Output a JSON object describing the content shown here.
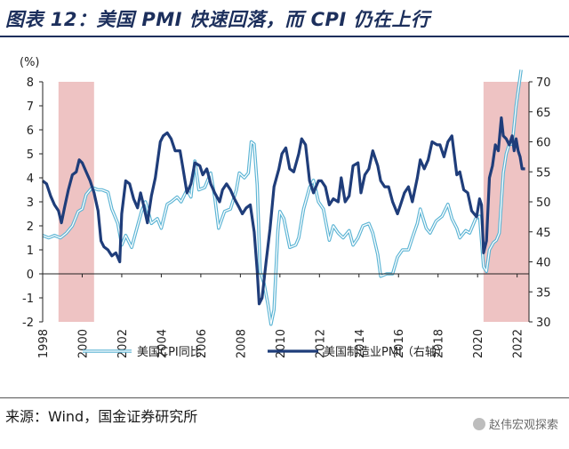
{
  "title": "图表 12：美国 PMI 快速回落，而 CPI 仍在上行",
  "source": "来源：Wind，国金证券研究所",
  "watermark": "赵伟宏观探索",
  "chart_data": {
    "type": "line",
    "y_left": {
      "unit_label": "(%)",
      "range": [
        -2,
        8
      ],
      "ticks": [
        "8",
        "7",
        "6",
        "5",
        "4",
        "3",
        "2",
        "1",
        "0",
        "-1",
        "-2"
      ]
    },
    "y_right": {
      "range": [
        30,
        70
      ],
      "ticks": [
        "70",
        "65",
        "60",
        "55",
        "50",
        "45",
        "40",
        "35",
        "30"
      ]
    },
    "x": {
      "range": [
        1998,
        2022.6
      ],
      "ticks": [
        "1998",
        "2000",
        "2002",
        "2004",
        "2006",
        "2008",
        "2010",
        "2012",
        "2014",
        "2016",
        "2018",
        "2020",
        "2022"
      ]
    },
    "shaded_periods": [
      [
        1998.8,
        2000.6
      ],
      [
        2020.3,
        2022.6
      ]
    ],
    "series": [
      {
        "name": "美国CPI同比",
        "axis": "left",
        "color": "#6fc3df",
        "points": [
          [
            1998.0,
            1.6
          ],
          [
            1998.3,
            1.5
          ],
          [
            1998.6,
            1.6
          ],
          [
            1998.9,
            1.5
          ],
          [
            1999.2,
            1.7
          ],
          [
            1999.5,
            2.0
          ],
          [
            1999.8,
            2.6
          ],
          [
            2000.0,
            2.7
          ],
          [
            2000.2,
            3.3
          ],
          [
            2000.5,
            3.6
          ],
          [
            2000.8,
            3.5
          ],
          [
            2001.0,
            3.5
          ],
          [
            2001.3,
            3.4
          ],
          [
            2001.5,
            2.7
          ],
          [
            2001.8,
            2.1
          ],
          [
            2002.0,
            1.2
          ],
          [
            2002.2,
            1.6
          ],
          [
            2002.5,
            1.1
          ],
          [
            2002.8,
            2.0
          ],
          [
            2003.0,
            2.6
          ],
          [
            2003.2,
            3.0
          ],
          [
            2003.5,
            2.1
          ],
          [
            2003.8,
            2.3
          ],
          [
            2004.0,
            1.9
          ],
          [
            2004.3,
            2.9
          ],
          [
            2004.5,
            3.0
          ],
          [
            2004.8,
            3.2
          ],
          [
            2005.0,
            3.0
          ],
          [
            2005.3,
            3.5
          ],
          [
            2005.5,
            3.2
          ],
          [
            2005.7,
            4.7
          ],
          [
            2005.9,
            3.5
          ],
          [
            2006.2,
            3.6
          ],
          [
            2006.5,
            4.2
          ],
          [
            2006.7,
            3.2
          ],
          [
            2006.9,
            1.9
          ],
          [
            2007.2,
            2.6
          ],
          [
            2007.5,
            2.7
          ],
          [
            2007.8,
            3.5
          ],
          [
            2007.95,
            4.2
          ],
          [
            2008.2,
            4.0
          ],
          [
            2008.4,
            4.2
          ],
          [
            2008.55,
            5.5
          ],
          [
            2008.7,
            5.4
          ],
          [
            2008.85,
            3.7
          ],
          [
            2009.0,
            0.1
          ],
          [
            2009.2,
            -0.4
          ],
          [
            2009.4,
            -1.3
          ],
          [
            2009.55,
            -2.1
          ],
          [
            2009.7,
            -1.5
          ],
          [
            2009.9,
            1.8
          ],
          [
            2010.0,
            2.6
          ],
          [
            2010.2,
            2.3
          ],
          [
            2010.5,
            1.1
          ],
          [
            2010.8,
            1.2
          ],
          [
            2010.95,
            1.5
          ],
          [
            2011.2,
            2.7
          ],
          [
            2011.5,
            3.6
          ],
          [
            2011.7,
            3.9
          ],
          [
            2011.95,
            3.0
          ],
          [
            2012.2,
            2.7
          ],
          [
            2012.5,
            1.4
          ],
          [
            2012.7,
            2.0
          ],
          [
            2012.95,
            1.7
          ],
          [
            2013.2,
            1.5
          ],
          [
            2013.5,
            1.8
          ],
          [
            2013.7,
            1.2
          ],
          [
            2013.95,
            1.5
          ],
          [
            2014.2,
            2.0
          ],
          [
            2014.5,
            2.1
          ],
          [
            2014.7,
            1.7
          ],
          [
            2014.95,
            0.8
          ],
          [
            2015.1,
            -0.1
          ],
          [
            2015.4,
            0.0
          ],
          [
            2015.7,
            0.0
          ],
          [
            2015.95,
            0.7
          ],
          [
            2016.2,
            1.0
          ],
          [
            2016.5,
            1.0
          ],
          [
            2016.7,
            1.5
          ],
          [
            2016.95,
            2.1
          ],
          [
            2017.1,
            2.7
          ],
          [
            2017.4,
            1.9
          ],
          [
            2017.6,
            1.7
          ],
          [
            2017.9,
            2.2
          ],
          [
            2018.2,
            2.4
          ],
          [
            2018.5,
            2.9
          ],
          [
            2018.7,
            2.3
          ],
          [
            2018.95,
            1.9
          ],
          [
            2019.1,
            1.5
          ],
          [
            2019.4,
            1.8
          ],
          [
            2019.6,
            1.7
          ],
          [
            2019.9,
            2.3
          ],
          [
            2020.1,
            2.4
          ],
          [
            2020.3,
            0.3
          ],
          [
            2020.45,
            0.1
          ],
          [
            2020.6,
            1.0
          ],
          [
            2020.8,
            1.3
          ],
          [
            2020.95,
            1.4
          ],
          [
            2021.1,
            1.7
          ],
          [
            2021.3,
            4.2
          ],
          [
            2021.45,
            5.0
          ],
          [
            2021.6,
            5.4
          ],
          [
            2021.75,
            5.4
          ],
          [
            2021.85,
            6.2
          ],
          [
            2021.95,
            7.0
          ],
          [
            2022.1,
            7.9
          ],
          [
            2022.2,
            8.5
          ]
        ]
      },
      {
        "name": "美国制造业PMI（右轴）",
        "axis": "right",
        "color": "#1f3d7a",
        "points": [
          [
            1998.0,
            53.5
          ],
          [
            1998.2,
            53.0
          ],
          [
            1998.4,
            51.0
          ],
          [
            1998.6,
            49.5
          ],
          [
            1998.8,
            48.5
          ],
          [
            1998.95,
            46.5
          ],
          [
            1999.1,
            49.0
          ],
          [
            1999.3,
            52.0
          ],
          [
            1999.5,
            54.5
          ],
          [
            1999.7,
            55.0
          ],
          [
            1999.85,
            57.0
          ],
          [
            2000.0,
            56.5
          ],
          [
            2000.2,
            55.0
          ],
          [
            2000.4,
            53.5
          ],
          [
            2000.6,
            51.5
          ],
          [
            2000.8,
            48.5
          ],
          [
            2000.95,
            43.5
          ],
          [
            2001.1,
            42.5
          ],
          [
            2001.3,
            42.0
          ],
          [
            2001.5,
            41.0
          ],
          [
            2001.7,
            41.5
          ],
          [
            2001.9,
            40.0
          ],
          [
            2002.0,
            48.0
          ],
          [
            2002.2,
            53.5
          ],
          [
            2002.4,
            53.0
          ],
          [
            2002.6,
            50.5
          ],
          [
            2002.8,
            49.0
          ],
          [
            2002.95,
            51.5
          ],
          [
            2003.1,
            49.5
          ],
          [
            2003.3,
            46.5
          ],
          [
            2003.5,
            51.0
          ],
          [
            2003.7,
            54.0
          ],
          [
            2003.95,
            60.0
          ],
          [
            2004.1,
            61.0
          ],
          [
            2004.3,
            61.5
          ],
          [
            2004.5,
            60.5
          ],
          [
            2004.7,
            58.5
          ],
          [
            2004.95,
            58.5
          ],
          [
            2005.1,
            55.5
          ],
          [
            2005.3,
            51.5
          ],
          [
            2005.5,
            53.0
          ],
          [
            2005.7,
            56.5
          ],
          [
            2005.95,
            56.0
          ],
          [
            2006.1,
            54.5
          ],
          [
            2006.3,
            55.5
          ],
          [
            2006.5,
            53.0
          ],
          [
            2006.7,
            51.5
          ],
          [
            2006.95,
            50.0
          ],
          [
            2007.1,
            52.0
          ],
          [
            2007.3,
            53.0
          ],
          [
            2007.5,
            52.0
          ],
          [
            2007.7,
            50.5
          ],
          [
            2007.95,
            49.0
          ],
          [
            2008.1,
            48.0
          ],
          [
            2008.3,
            49.0
          ],
          [
            2008.5,
            49.5
          ],
          [
            2008.7,
            45.0
          ],
          [
            2008.85,
            38.5
          ],
          [
            2008.95,
            33.0
          ],
          [
            2009.1,
            34.0
          ],
          [
            2009.3,
            40.0
          ],
          [
            2009.5,
            45.5
          ],
          [
            2009.7,
            52.5
          ],
          [
            2009.95,
            55.5
          ],
          [
            2010.1,
            58.0
          ],
          [
            2010.3,
            59.0
          ],
          [
            2010.5,
            55.5
          ],
          [
            2010.7,
            55.0
          ],
          [
            2010.95,
            58.0
          ],
          [
            2011.1,
            60.5
          ],
          [
            2011.3,
            59.5
          ],
          [
            2011.5,
            53.5
          ],
          [
            2011.7,
            51.5
          ],
          [
            2011.95,
            53.5
          ],
          [
            2012.1,
            53.5
          ],
          [
            2012.3,
            52.5
          ],
          [
            2012.5,
            49.5
          ],
          [
            2012.7,
            50.5
          ],
          [
            2012.95,
            50.0
          ],
          [
            2013.1,
            54.0
          ],
          [
            2013.3,
            50.0
          ],
          [
            2013.5,
            51.0
          ],
          [
            2013.7,
            56.0
          ],
          [
            2013.95,
            56.5
          ],
          [
            2014.1,
            51.5
          ],
          [
            2014.3,
            54.5
          ],
          [
            2014.5,
            55.5
          ],
          [
            2014.7,
            58.5
          ],
          [
            2014.95,
            56.0
          ],
          [
            2015.1,
            53.5
          ],
          [
            2015.3,
            52.5
          ],
          [
            2015.5,
            52.5
          ],
          [
            2015.7,
            50.0
          ],
          [
            2015.95,
            48.0
          ],
          [
            2016.1,
            49.5
          ],
          [
            2016.3,
            51.5
          ],
          [
            2016.5,
            52.5
          ],
          [
            2016.7,
            50.0
          ],
          [
            2016.95,
            54.0
          ],
          [
            2017.1,
            57.0
          ],
          [
            2017.3,
            55.5
          ],
          [
            2017.5,
            57.0
          ],
          [
            2017.7,
            60.0
          ],
          [
            2017.95,
            59.5
          ],
          [
            2018.1,
            59.5
          ],
          [
            2018.3,
            57.5
          ],
          [
            2018.5,
            60.0
          ],
          [
            2018.7,
            61.0
          ],
          [
            2018.95,
            54.5
          ],
          [
            2019.1,
            55.0
          ],
          [
            2019.3,
            52.0
          ],
          [
            2019.5,
            51.5
          ],
          [
            2019.7,
            48.5
          ],
          [
            2019.95,
            47.5
          ],
          [
            2020.1,
            50.5
          ],
          [
            2020.2,
            49.5
          ],
          [
            2020.3,
            41.5
          ],
          [
            2020.45,
            43.5
          ],
          [
            2020.6,
            54.0
          ],
          [
            2020.75,
            56.0
          ],
          [
            2020.9,
            59.5
          ],
          [
            2021.05,
            58.5
          ],
          [
            2021.2,
            64.0
          ],
          [
            2021.3,
            61.0
          ],
          [
            2021.45,
            60.5
          ],
          [
            2021.6,
            59.5
          ],
          [
            2021.75,
            61.0
          ],
          [
            2021.85,
            58.5
          ],
          [
            2021.95,
            60.5
          ],
          [
            2022.05,
            58.5
          ],
          [
            2022.15,
            57.5
          ],
          [
            2022.25,
            55.5
          ],
          [
            2022.4,
            55.5
          ]
        ]
      }
    ],
    "legend_position": "bottom"
  }
}
